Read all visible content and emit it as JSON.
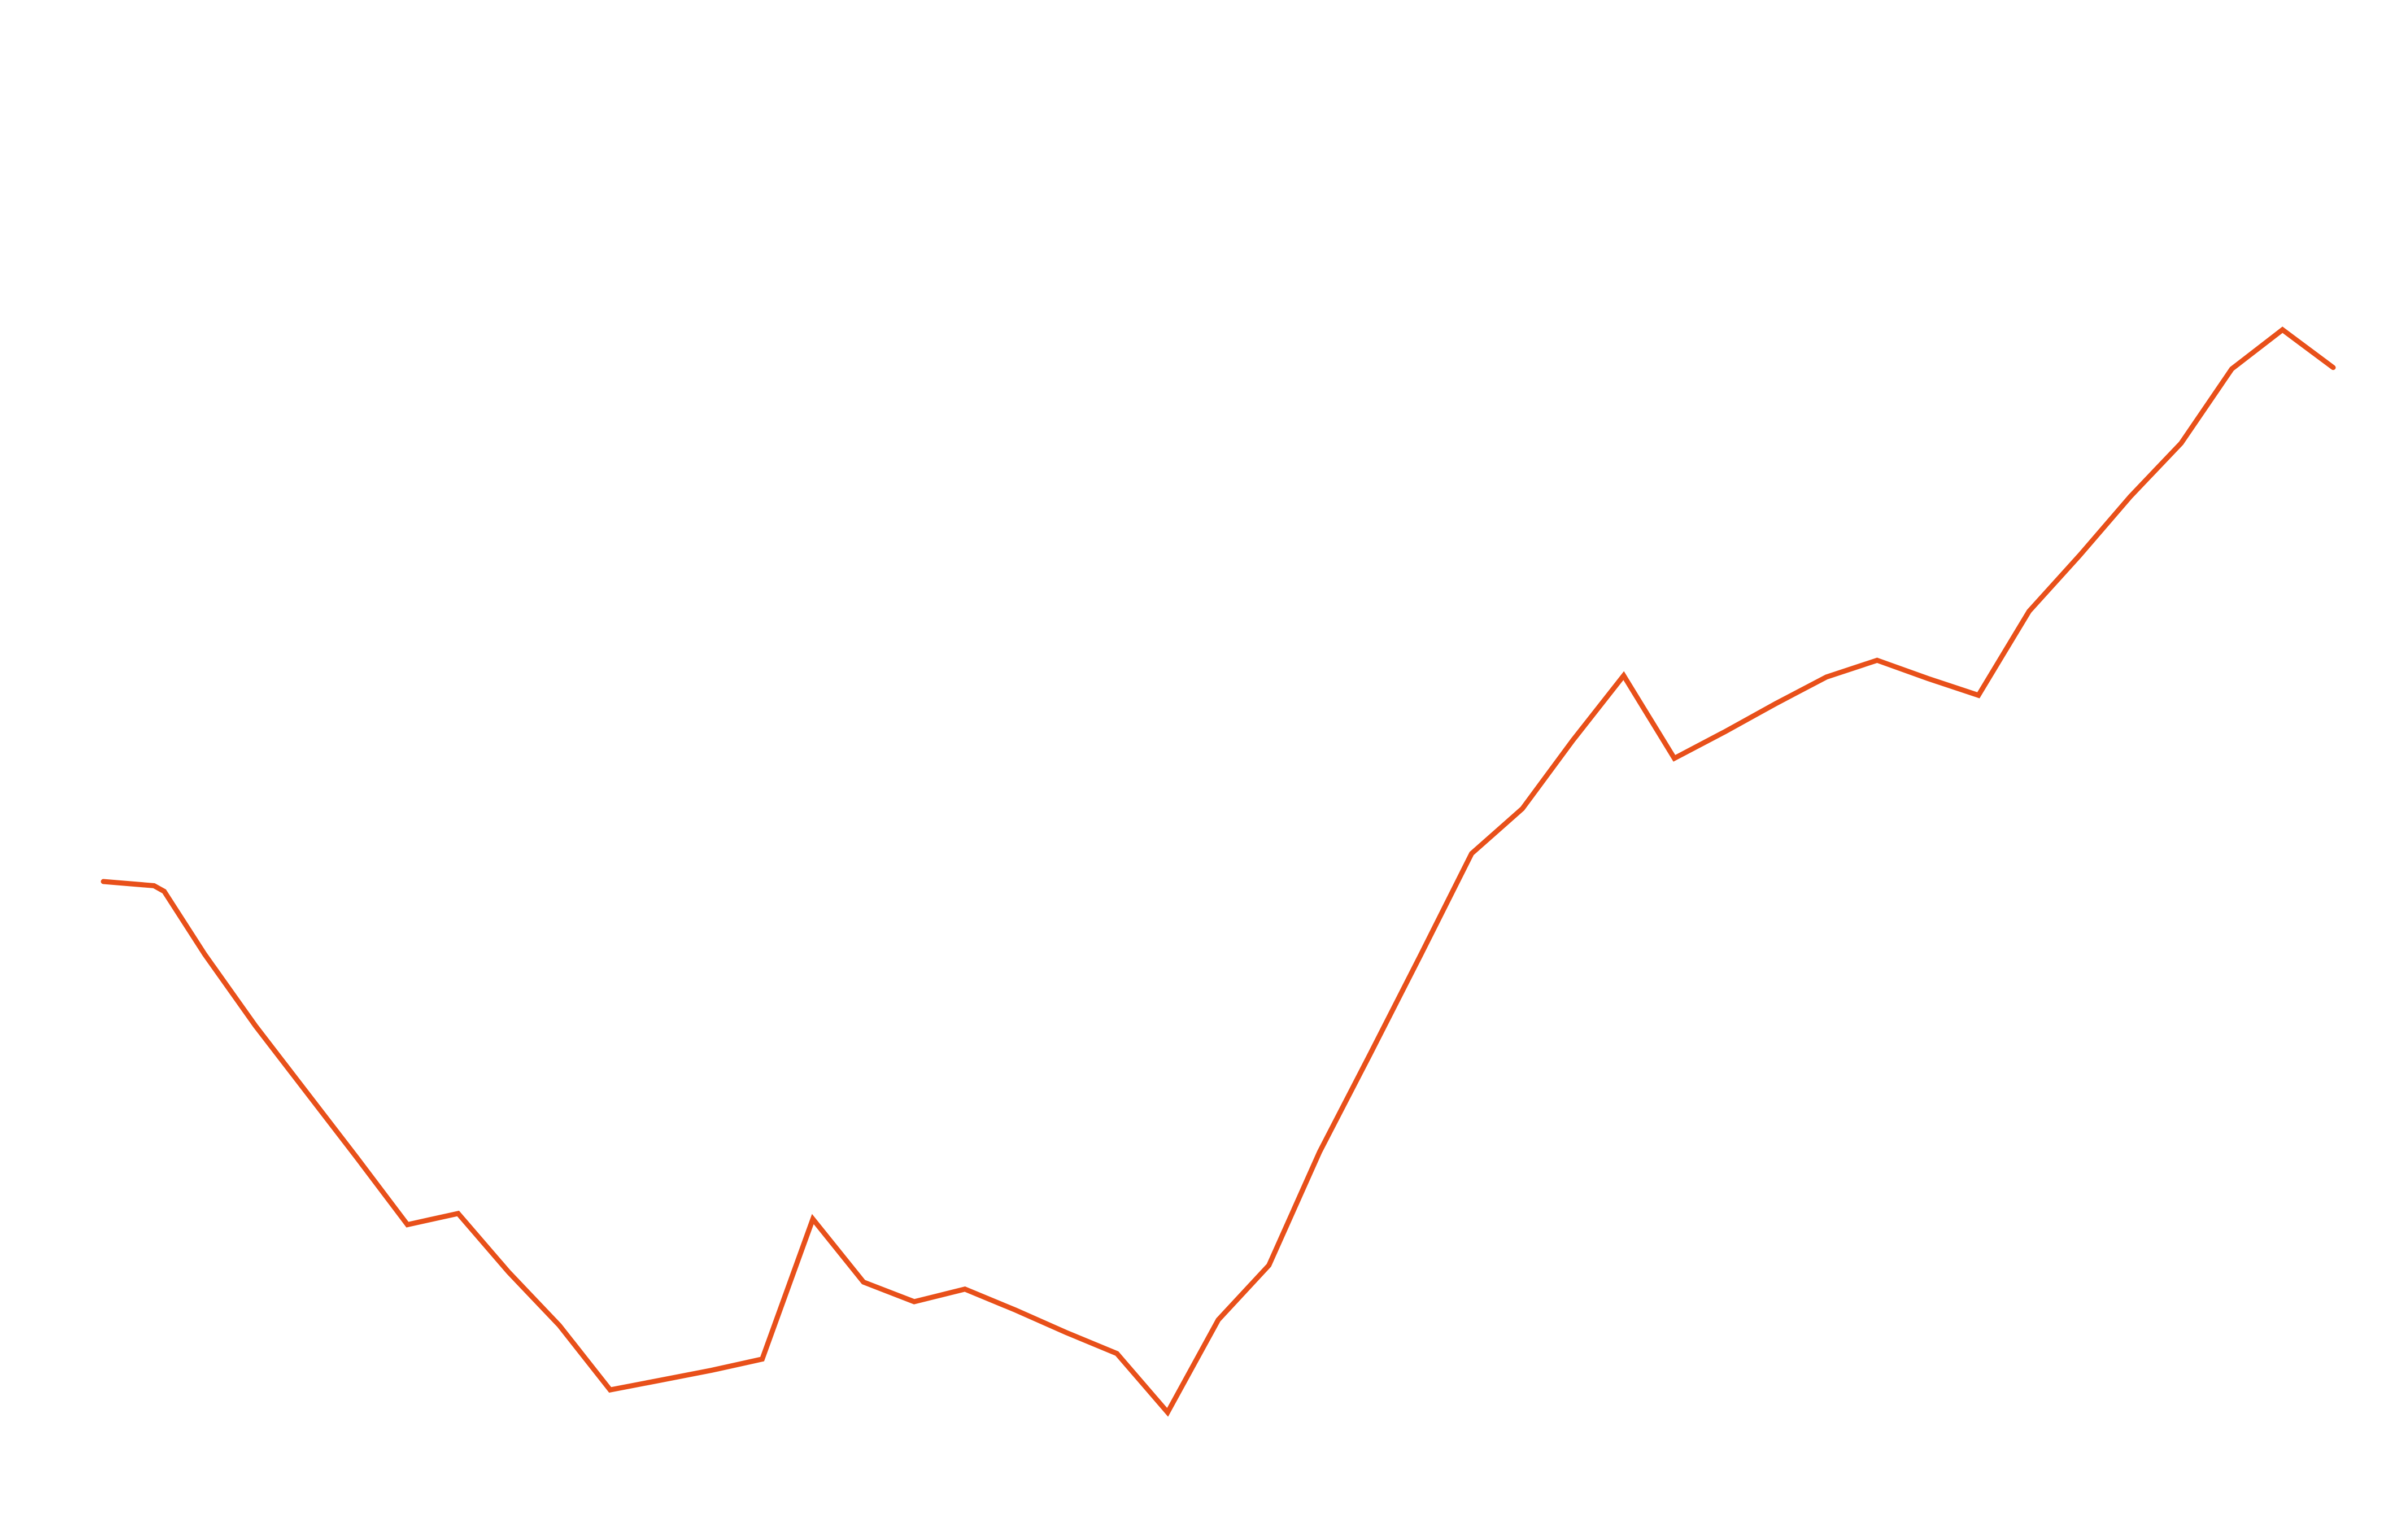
{
  "colors": {
    "background": "#ffffff",
    "series": "#E8501A"
  },
  "chart_data": {
    "type": "line",
    "title": "",
    "xlabel": "",
    "ylabel": "",
    "grid": false,
    "legend": "none",
    "axes_visible": false,
    "xlim": [
      0,
      44
    ],
    "ylim": [
      0,
      100
    ],
    "series": [
      {
        "x": [
          0,
          1,
          1.2,
          2,
          3,
          4,
          5,
          6,
          7,
          8,
          9,
          10,
          11,
          12,
          13,
          14,
          15,
          16,
          17,
          18,
          19,
          20,
          21,
          22,
          23,
          24,
          25,
          26,
          27,
          28,
          29,
          30,
          31,
          32,
          33,
          34,
          35,
          36,
          37,
          38,
          39,
          40,
          41,
          42,
          43,
          44
        ],
        "y": [
          42.5,
          42.2,
          41.8,
          37.3,
          32.2,
          27.5,
          22.8,
          18.0,
          18.8,
          14.6,
          10.8,
          6.2,
          6.9,
          7.6,
          8.4,
          18.4,
          13.9,
          12.5,
          13.4,
          11.9,
          10.3,
          8.8,
          4.6,
          11.2,
          15.1,
          23.2,
          30.2,
          37.3,
          44.5,
          47.7,
          52.6,
          57.2,
          51.3,
          53.2,
          55.2,
          57.1,
          58.3,
          57.0,
          55.8,
          61.8,
          65.8,
          70.0,
          73.8,
          79.1,
          81.9,
          79.2
        ]
      }
    ]
  }
}
